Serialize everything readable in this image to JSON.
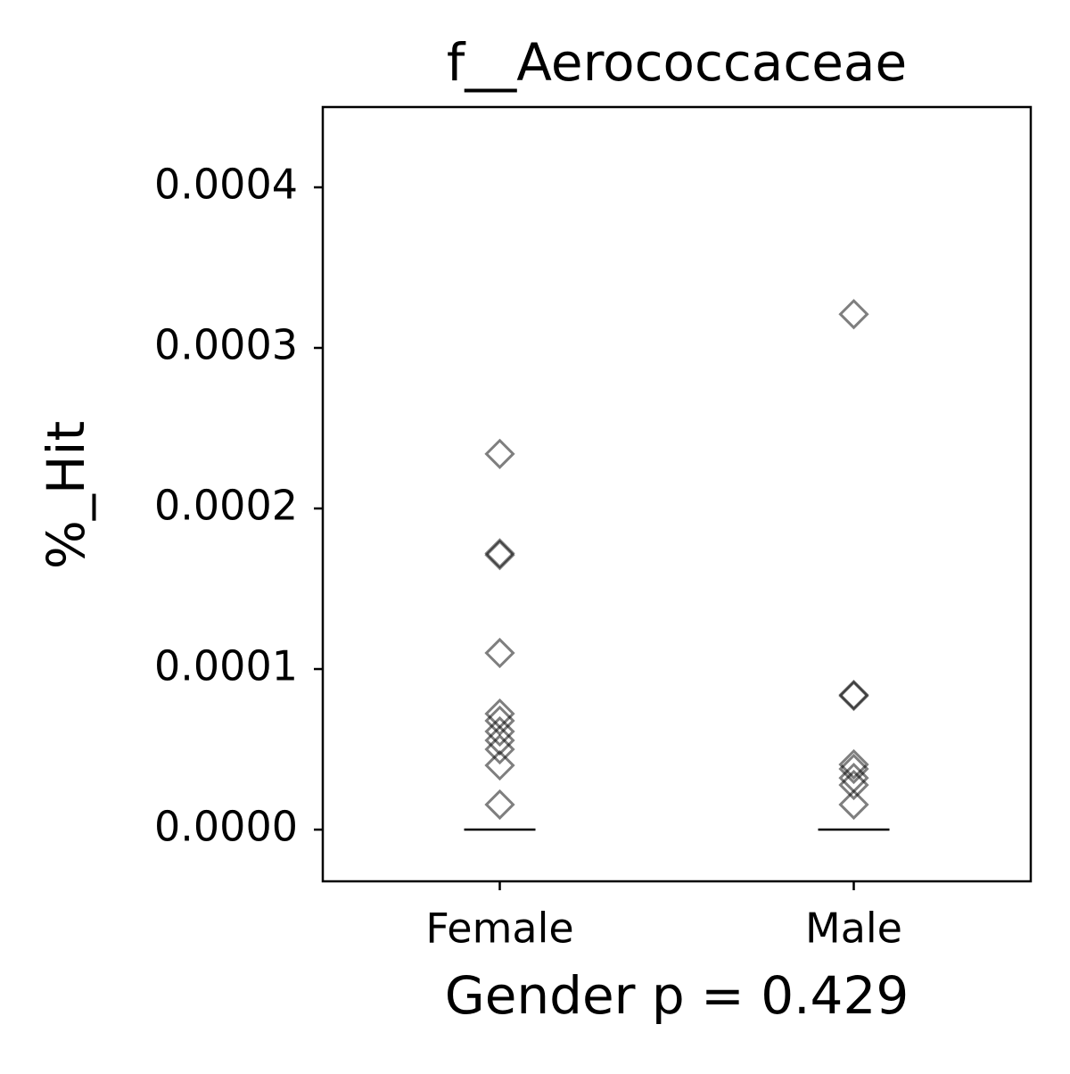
{
  "chart_data": {
    "type": "strip",
    "title": "f__Aerococcaceae",
    "x_label": "Gender p = 0.429",
    "y_label": "%_Hit",
    "categories": [
      "Female",
      "Male"
    ],
    "points": [
      [
        0.000234,
        0.000172,
        0.000171,
        0.00011,
        7.22e-05,
        6.78e-05,
        6.11e-05,
        5.56e-05,
        5e-05,
        4e-05,
        1.56e-05
      ],
      [
        0.000321,
        8.39e-05,
        8.33e-05,
        4.06e-05,
        3.78e-05,
        3.22e-05,
        2.78e-05,
        1.56e-05
      ]
    ],
    "medians": [
      0,
      0
    ],
    "color": "#000000",
    "ylim": [
      -3.22e-05,
      0.00045
    ],
    "yticks": [
      {
        "value": 0,
        "label": "0.0000"
      },
      0.0001,
      0.0002,
      0.0003,
      0.0004
    ]
  }
}
